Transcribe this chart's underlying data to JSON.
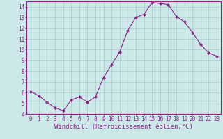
{
  "x": [
    0,
    1,
    2,
    3,
    4,
    5,
    6,
    7,
    8,
    9,
    10,
    11,
    12,
    13,
    14,
    15,
    16,
    17,
    18,
    19,
    20,
    21,
    22,
    23
  ],
  "y": [
    6.1,
    5.7,
    5.1,
    4.6,
    4.3,
    5.3,
    5.6,
    5.1,
    5.6,
    7.4,
    8.6,
    9.8,
    11.8,
    13.0,
    13.3,
    14.4,
    14.3,
    14.2,
    13.1,
    12.6,
    11.6,
    10.5,
    9.7,
    9.4
  ],
  "line_color": "#882288",
  "marker": "D",
  "marker_size": 2.0,
  "bg_color": "#cce8e8",
  "grid_color": "#aacccc",
  "xlabel": "Windchill (Refroidissement éolien,°C)",
  "ylim": [
    4,
    14.5
  ],
  "xlim": [
    -0.5,
    23.5
  ],
  "yticks": [
    4,
    5,
    6,
    7,
    8,
    9,
    10,
    11,
    12,
    13,
    14
  ],
  "xticks": [
    0,
    1,
    2,
    3,
    4,
    5,
    6,
    7,
    8,
    9,
    10,
    11,
    12,
    13,
    14,
    15,
    16,
    17,
    18,
    19,
    20,
    21,
    22,
    23
  ],
  "tick_color": "#882288",
  "label_color": "#882288",
  "tick_fontsize": 5.5,
  "xlabel_fontsize": 6.5,
  "line_width": 0.8
}
